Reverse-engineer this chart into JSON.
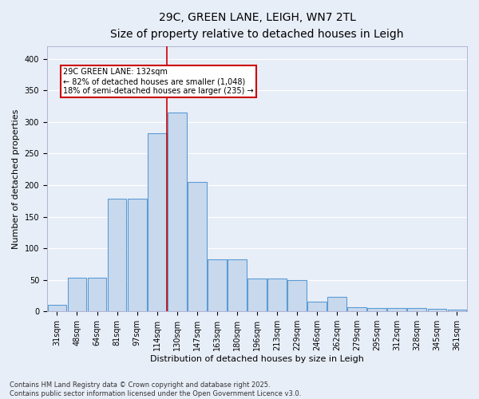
{
  "title": "29C, GREEN LANE, LEIGH, WN7 2TL",
  "subtitle": "Size of property relative to detached houses in Leigh",
  "xlabel": "Distribution of detached houses by size in Leigh",
  "ylabel": "Number of detached properties",
  "bar_color": "#c8d9ed",
  "bar_edge_color": "#5b9bd5",
  "background_color": "#e8eef8",
  "grid_color": "#ffffff",
  "fig_bg_color": "#e8eef8",
  "categories": [
    "31sqm",
    "48sqm",
    "64sqm",
    "81sqm",
    "97sqm",
    "114sqm",
    "130sqm",
    "147sqm",
    "163sqm",
    "180sqm",
    "196sqm",
    "213sqm",
    "229sqm",
    "246sqm",
    "262sqm",
    "279sqm",
    "295sqm",
    "312sqm",
    "328sqm",
    "345sqm",
    "361sqm"
  ],
  "bar_heights": [
    10,
    54,
    54,
    178,
    178,
    282,
    315,
    205,
    82,
    82,
    52,
    52,
    50,
    15,
    23,
    7,
    6,
    6,
    5,
    4,
    3
  ],
  "vline_color": "#cc0000",
  "annotation_text": "29C GREEN LANE: 132sqm\n← 82% of detached houses are smaller (1,048)\n18% of semi-detached houses are larger (235) →",
  "annotation_box_color": "#cc0000",
  "ylim": [
    0,
    420
  ],
  "yticks": [
    0,
    50,
    100,
    150,
    200,
    250,
    300,
    350,
    400
  ],
  "footnote": "Contains HM Land Registry data © Crown copyright and database right 2025.\nContains public sector information licensed under the Open Government Licence v3.0.",
  "title_fontsize": 10,
  "subtitle_fontsize": 9,
  "xlabel_fontsize": 8,
  "ylabel_fontsize": 8,
  "tick_fontsize": 7,
  "annot_fontsize": 7,
  "footnote_fontsize": 6
}
